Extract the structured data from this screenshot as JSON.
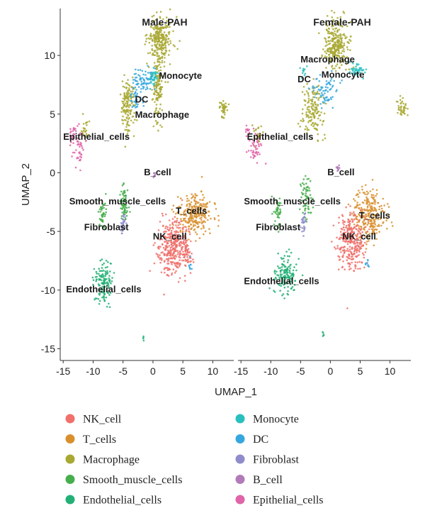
{
  "chart_data": {
    "type": "scatter",
    "xlabel": "UMAP_1",
    "ylabel": "UMAP_2",
    "xlim": [
      -15.5,
      13.5
    ],
    "ylim": [
      -16,
      14
    ],
    "xticks": [
      -15,
      -10,
      -5,
      0,
      5,
      10
    ],
    "yticks": [
      -15,
      -10,
      -5,
      0,
      5,
      10
    ],
    "legend_position": "bottom",
    "categories": [
      {
        "name": "NK_cell",
        "color": "#F0706B"
      },
      {
        "name": "T_cells",
        "color": "#D8902E"
      },
      {
        "name": "Macrophage",
        "color": "#A8A832"
      },
      {
        "name": "Smooth_muscle_cells",
        "color": "#46AE4C"
      },
      {
        "name": "Endothelial_cells",
        "color": "#22B076"
      },
      {
        "name": "Monocyte",
        "color": "#2ABFBF"
      },
      {
        "name": "DC",
        "color": "#36A7DE"
      },
      {
        "name": "Fibroblast",
        "color": "#8E8CCB"
      },
      {
        "name": "B_cell",
        "color": "#B27BB8"
      },
      {
        "name": "Epithelial_cells",
        "color": "#E064A8"
      }
    ],
    "facets": [
      {
        "title": "Male-PAH",
        "labels": [
          {
            "text": "Monocyte",
            "x": 1.0,
            "y": 8.0
          },
          {
            "text": "DC",
            "x": -3.0,
            "y": 6.0
          },
          {
            "text": "Macrophage",
            "x": -3.0,
            "y": 4.7
          },
          {
            "text": "Epithelial_cells",
            "x": -15.0,
            "y": 2.8
          },
          {
            "text": "B_cell",
            "x": -1.5,
            "y": -0.2
          },
          {
            "text": "Smooth_muscle_cells",
            "x": -14.0,
            "y": -2.7
          },
          {
            "text": "T_cells",
            "x": 3.8,
            "y": -3.5
          },
          {
            "text": "Fibroblast",
            "x": -11.5,
            "y": -4.9
          },
          {
            "text": "NK_cell",
            "x": 0.0,
            "y": -5.7
          },
          {
            "text": "Endothelial_cells",
            "x": -14.5,
            "y": -10.2
          }
        ],
        "clusters": [
          {
            "cat": "Macrophage",
            "cx": 1.2,
            "cy": 11.3,
            "sx": 1.3,
            "sy": 1.3,
            "n": 260
          },
          {
            "cat": "Macrophage",
            "cx": 0.8,
            "cy": 7.0,
            "sx": 0.5,
            "sy": 1.7,
            "n": 120
          },
          {
            "cat": "Macrophage",
            "cx": -4.3,
            "cy": 5.6,
            "sx": 0.8,
            "sy": 1.5,
            "n": 150
          },
          {
            "cat": "Macrophage",
            "cx": 11.8,
            "cy": 5.5,
            "sx": 0.5,
            "sy": 0.5,
            "n": 40
          },
          {
            "cat": "Macrophage",
            "cx": -11.3,
            "cy": 3.6,
            "sx": 0.4,
            "sy": 0.6,
            "n": 25
          },
          {
            "cat": "Monocyte",
            "cx": 0.0,
            "cy": 8.2,
            "sx": 0.6,
            "sy": 0.5,
            "n": 40
          },
          {
            "cat": "DC",
            "cx": -1.7,
            "cy": 7.8,
            "sx": 1.1,
            "sy": 0.7,
            "n": 70
          },
          {
            "cat": "DC",
            "cx": -2.8,
            "cy": 6.3,
            "sx": 0.6,
            "sy": 0.6,
            "n": 30
          },
          {
            "cat": "Epithelial_cells",
            "cx": -12.5,
            "cy": 2.2,
            "sx": 0.7,
            "sy": 1.0,
            "n": 45
          },
          {
            "cat": "Epithelial_cells",
            "cx": -13.5,
            "cy": 3.4,
            "sx": 0.3,
            "sy": 0.4,
            "n": 15
          },
          {
            "cat": "B_cell",
            "cx": 0.3,
            "cy": -0.2,
            "sx": 0.2,
            "sy": 0.2,
            "n": 8
          },
          {
            "cat": "Smooth_muscle_cells",
            "cx": -4.8,
            "cy": -2.5,
            "sx": 0.5,
            "sy": 1.2,
            "n": 70
          },
          {
            "cat": "Smooth_muscle_cells",
            "cx": -8.5,
            "cy": -3.5,
            "sx": 0.6,
            "sy": 0.9,
            "n": 45
          },
          {
            "cat": "Fibroblast",
            "cx": -5.0,
            "cy": -4.4,
            "sx": 0.3,
            "sy": 0.6,
            "n": 30
          },
          {
            "cat": "T_cells",
            "cx": 7.0,
            "cy": -3.5,
            "sx": 1.8,
            "sy": 1.1,
            "n": 260
          },
          {
            "cat": "NK_cell",
            "cx": 3.2,
            "cy": -6.3,
            "sx": 1.6,
            "sy": 1.6,
            "n": 320
          },
          {
            "cat": "NK_cell",
            "cx": 5.6,
            "cy": -6.8,
            "sx": 0.7,
            "sy": 0.9,
            "n": 60
          },
          {
            "cat": "DC",
            "cx": 6.3,
            "cy": -8.0,
            "sx": 0.2,
            "sy": 0.3,
            "n": 8
          },
          {
            "cat": "Endothelial_cells",
            "cx": -8.3,
            "cy": -9.2,
            "sx": 1.0,
            "sy": 1.3,
            "n": 130
          },
          {
            "cat": "Endothelial_cells",
            "cx": -1.5,
            "cy": -14.1,
            "sx": 0.15,
            "sy": 0.15,
            "n": 4
          }
        ]
      },
      {
        "title": "Female-PAH",
        "labels": [
          {
            "text": "Macrophage",
            "x": -5.0,
            "y": 9.4
          },
          {
            "text": "DC",
            "x": -5.5,
            "y": 7.7
          },
          {
            "text": "Monocyte",
            "x": -1.5,
            "y": 8.1
          },
          {
            "text": "Epithelial_cells",
            "x": -14.0,
            "y": 2.8
          },
          {
            "text": "B_cell",
            "x": -0.5,
            "y": -0.2
          },
          {
            "text": "Smooth_muscle_cells",
            "x": -14.5,
            "y": -2.7
          },
          {
            "text": "T_cells",
            "x": 4.8,
            "y": -3.9
          },
          {
            "text": "Fibroblast",
            "x": -12.5,
            "y": -4.9
          },
          {
            "text": "NK_cell",
            "x": 2.0,
            "y": -5.7
          },
          {
            "text": "Endothelial_cells",
            "x": -14.5,
            "y": -9.5
          }
        ],
        "clusters": [
          {
            "cat": "Macrophage",
            "cx": 1.0,
            "cy": 11.0,
            "sx": 1.4,
            "sy": 1.3,
            "n": 270
          },
          {
            "cat": "Macrophage",
            "cx": -3.0,
            "cy": 5.3,
            "sx": 1.2,
            "sy": 1.6,
            "n": 150
          },
          {
            "cat": "Macrophage",
            "cx": 12.0,
            "cy": 5.5,
            "sx": 0.5,
            "sy": 0.5,
            "n": 40
          },
          {
            "cat": "Macrophage",
            "cx": -12.0,
            "cy": 3.3,
            "sx": 0.5,
            "sy": 0.5,
            "n": 20
          },
          {
            "cat": "Monocyte",
            "cx": 4.5,
            "cy": 8.6,
            "sx": 0.8,
            "sy": 0.4,
            "n": 45
          },
          {
            "cat": "Monocyte",
            "cx": -4.5,
            "cy": 8.6,
            "sx": 0.3,
            "sy": 0.3,
            "n": 12
          },
          {
            "cat": "DC",
            "cx": -1.0,
            "cy": 7.0,
            "sx": 1.4,
            "sy": 0.9,
            "n": 70
          },
          {
            "cat": "Epithelial_cells",
            "cx": -12.5,
            "cy": 2.0,
            "sx": 0.8,
            "sy": 0.9,
            "n": 45
          },
          {
            "cat": "Epithelial_cells",
            "cx": -13.8,
            "cy": 3.6,
            "sx": 0.3,
            "sy": 0.3,
            "n": 12
          },
          {
            "cat": "B_cell",
            "cx": 1.2,
            "cy": 0.4,
            "sx": 0.2,
            "sy": 0.3,
            "n": 10
          },
          {
            "cat": "Smooth_muscle_cells",
            "cx": -4.0,
            "cy": -2.3,
            "sx": 0.6,
            "sy": 1.2,
            "n": 65
          },
          {
            "cat": "Smooth_muscle_cells",
            "cx": -8.8,
            "cy": -3.5,
            "sx": 0.6,
            "sy": 1.0,
            "n": 45
          },
          {
            "cat": "Fibroblast",
            "cx": -4.5,
            "cy": -4.3,
            "sx": 0.3,
            "sy": 0.6,
            "n": 25
          },
          {
            "cat": "T_cells",
            "cx": 6.5,
            "cy": -3.6,
            "sx": 1.8,
            "sy": 1.5,
            "n": 260
          },
          {
            "cat": "NK_cell",
            "cx": 3.5,
            "cy": -5.8,
            "sx": 1.5,
            "sy": 1.6,
            "n": 300
          },
          {
            "cat": "DC",
            "cx": 6.2,
            "cy": -7.7,
            "sx": 0.2,
            "sy": 0.3,
            "n": 8
          },
          {
            "cat": "Endothelial_cells",
            "cx": -7.5,
            "cy": -8.8,
            "sx": 1.2,
            "sy": 1.2,
            "n": 140
          },
          {
            "cat": "Endothelial_cells",
            "cx": -1.2,
            "cy": -13.8,
            "sx": 0.15,
            "sy": 0.2,
            "n": 5
          }
        ]
      }
    ]
  }
}
